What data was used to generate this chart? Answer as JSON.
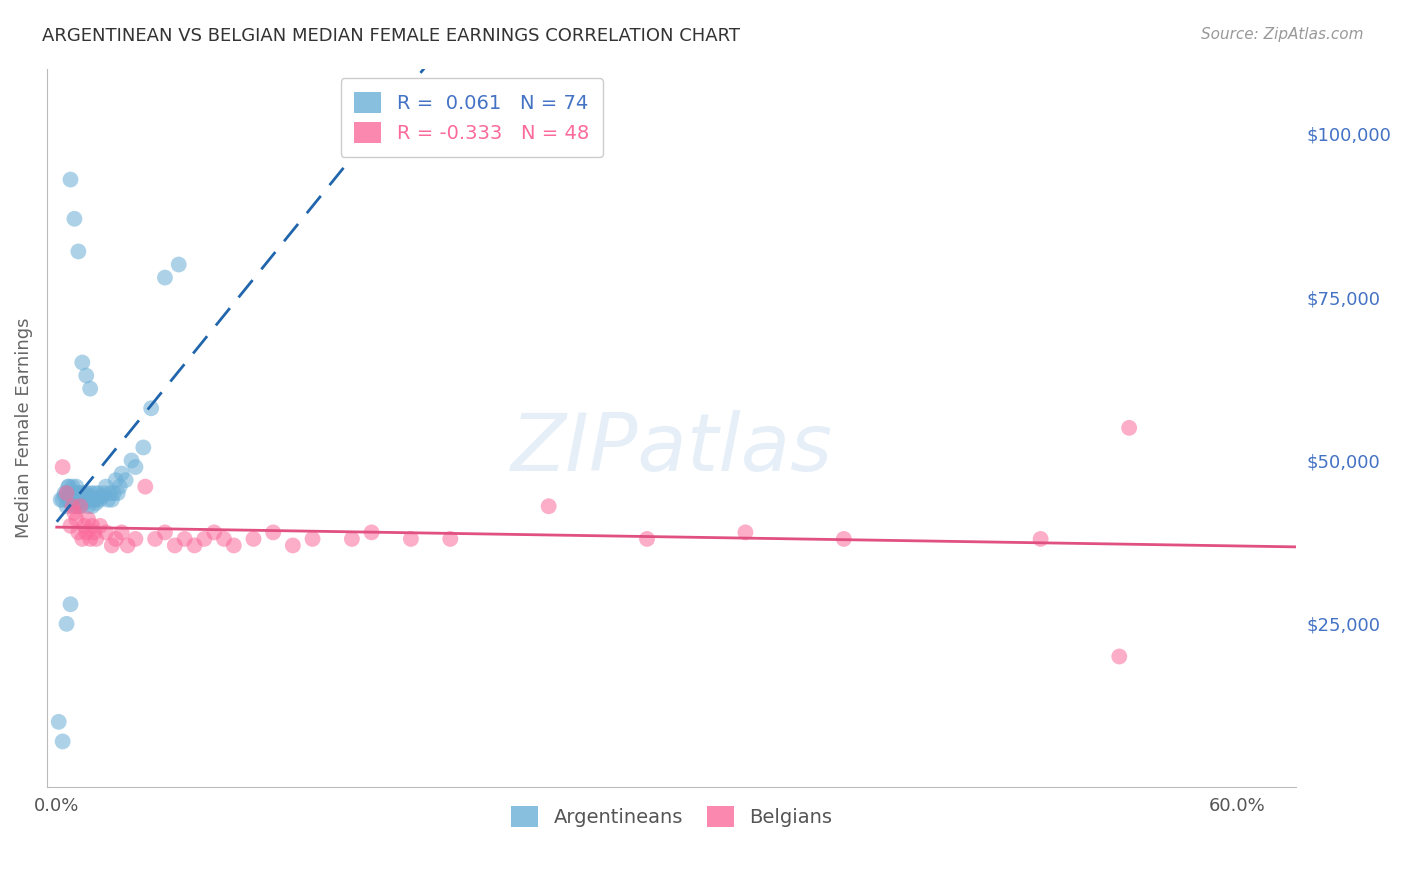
{
  "title": "ARGENTINEAN VS BELGIAN MEDIAN FEMALE EARNINGS CORRELATION CHART",
  "source": "Source: ZipAtlas.com",
  "ylabel": "Median Female Earnings",
  "watermark": "ZIPatlas",
  "right_ytick_values": [
    100000,
    75000,
    50000,
    25000
  ],
  "ymin": 0,
  "ymax": 110000,
  "xmin": -0.005,
  "xmax": 0.63,
  "legend_label_arg": "R =  0.061   N = 74",
  "legend_label_bel": "R = -0.333   N = 48",
  "argentinean_color": "#6baed6",
  "belgian_color": "#fb6a9a",
  "trend_arg_color": "#2166ac",
  "trend_bel_color": "#e05080",
  "background_color": "#ffffff",
  "grid_color": "#cccccc",
  "title_color": "#333333",
  "source_color": "#999999",
  "right_label_color": "#4472c4",
  "arg_x": [
    0.002,
    0.004,
    0.005,
    0.005,
    0.006,
    0.006,
    0.007,
    0.007,
    0.008,
    0.008,
    0.009,
    0.009,
    0.01,
    0.01,
    0.01,
    0.011,
    0.011,
    0.012,
    0.012,
    0.013,
    0.013,
    0.014,
    0.014,
    0.015,
    0.015,
    0.016,
    0.016,
    0.017,
    0.017,
    0.018,
    0.018,
    0.019,
    0.019,
    0.02,
    0.02,
    0.021,
    0.022,
    0.023,
    0.024,
    0.025,
    0.026,
    0.027,
    0.028,
    0.029,
    0.03,
    0.031,
    0.032,
    0.033,
    0.035,
    0.038,
    0.04,
    0.044,
    0.048,
    0.055,
    0.062,
    0.003,
    0.004,
    0.006,
    0.008,
    0.01,
    0.012,
    0.007,
    0.009,
    0.011,
    0.013,
    0.001,
    0.003,
    0.005,
    0.007,
    0.009,
    0.011,
    0.013,
    0.015,
    0.017
  ],
  "arg_y": [
    44000,
    44500,
    43000,
    45000,
    44000,
    46000,
    43500,
    45000,
    44000,
    46000,
    43000,
    45000,
    44000,
    43500,
    46000,
    44000,
    45000,
    44000,
    43000,
    44000,
    45000,
    44000,
    43500,
    44000,
    45000,
    44000,
    43000,
    44500,
    45000,
    44000,
    43000,
    44000,
    45000,
    44000,
    43500,
    45000,
    44000,
    44500,
    45000,
    46000,
    44000,
    45000,
    44000,
    45000,
    47000,
    45000,
    46000,
    48000,
    47000,
    50000,
    49000,
    52000,
    58000,
    78000,
    80000,
    44000,
    45000,
    46000,
    44000,
    45000,
    44000,
    93000,
    87000,
    82000,
    65000,
    10000,
    7000,
    25000,
    28000,
    44000,
    43000,
    45000,
    63000,
    61000
  ],
  "bel_x": [
    0.003,
    0.005,
    0.007,
    0.008,
    0.009,
    0.01,
    0.011,
    0.012,
    0.013,
    0.014,
    0.015,
    0.016,
    0.017,
    0.018,
    0.019,
    0.02,
    0.022,
    0.025,
    0.028,
    0.03,
    0.033,
    0.036,
    0.04,
    0.045,
    0.05,
    0.055,
    0.06,
    0.065,
    0.07,
    0.075,
    0.08,
    0.085,
    0.09,
    0.1,
    0.11,
    0.12,
    0.13,
    0.15,
    0.16,
    0.18,
    0.2,
    0.25,
    0.3,
    0.35,
    0.4,
    0.5,
    0.54,
    0.545
  ],
  "bel_y": [
    49000,
    45000,
    40000,
    43000,
    42000,
    41000,
    39000,
    43000,
    38000,
    40000,
    39000,
    41000,
    38000,
    40000,
    39000,
    38000,
    40000,
    39000,
    37000,
    38000,
    39000,
    37000,
    38000,
    46000,
    38000,
    39000,
    37000,
    38000,
    37000,
    38000,
    39000,
    38000,
    37000,
    38000,
    39000,
    37000,
    38000,
    38000,
    39000,
    38000,
    38000,
    43000,
    38000,
    39000,
    38000,
    38000,
    20000,
    55000
  ]
}
